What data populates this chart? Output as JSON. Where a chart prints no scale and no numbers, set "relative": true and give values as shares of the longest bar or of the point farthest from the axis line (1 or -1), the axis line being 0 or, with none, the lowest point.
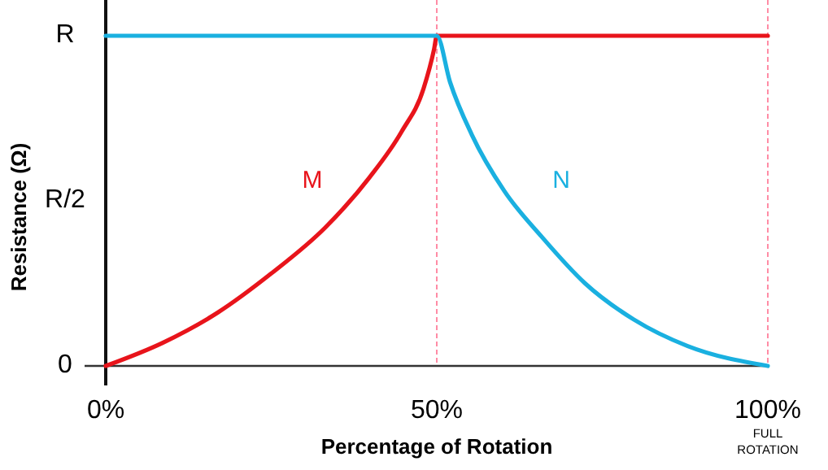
{
  "chart_data": {
    "type": "line",
    "xlabel": "Percentage of Rotation",
    "ylabel": "Resistance (Ω)",
    "relative": true,
    "xlim": [
      0,
      100
    ],
    "xticks": [
      {
        "value": 0,
        "label": "0%"
      },
      {
        "value": 50,
        "label": "50%"
      },
      {
        "value": 100,
        "label": "100%"
      }
    ],
    "grid": false,
    "legend": false,
    "marker": "none",
    "line_style": "solid",
    "series": [
      {
        "name": "M",
        "color": "#e8141b",
        "x": [
          0,
          8.6,
          16.8,
          25,
          33.2,
          39.8,
          44.7,
          48,
          49.6,
          50,
          100
        ],
        "values": [
          0,
          0.07,
          0.16,
          0.28,
          0.42,
          0.57,
          0.71,
          0.84,
          0.96,
          1,
          1
        ]
      },
      {
        "name": "N",
        "color": "#1ab0e0",
        "x": [
          0,
          50,
          52,
          55.3,
          60.2,
          65.9,
          72.4,
          79.8,
          87.9,
          100
        ],
        "values": [
          1,
          1,
          0.86,
          0.7,
          0.53,
          0.39,
          0.25,
          0.14,
          0.06,
          0
        ]
      }
    ],
    "ref_lines": [
      {
        "axis": "x",
        "value": 50,
        "color": "#ff7090",
        "line_style": "dashed"
      },
      {
        "axis": "x",
        "value": 100,
        "color": "#ff7090",
        "line_style": "dashed"
      }
    ],
    "annotations": [
      "R",
      "R/2",
      "0",
      "FULL ROTATION"
    ]
  }
}
